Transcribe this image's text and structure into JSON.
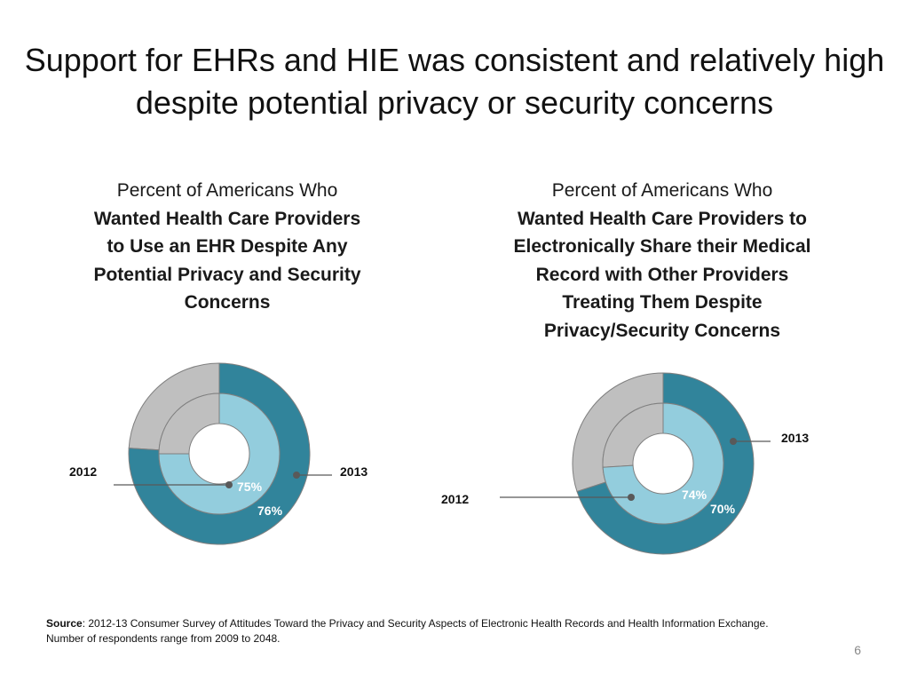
{
  "slide": {
    "title_lines": [
      "Support for EHRs and HIE was consistent and relatively high",
      "despite potential privacy or security concerns"
    ],
    "page_number": "6"
  },
  "panels": [
    {
      "title_lead": "Percent of Americans Who",
      "title_bold_lines": [
        "Wanted Health Care Providers",
        "to Use an EHR Despite Any",
        "Potential Privacy and Security",
        "Concerns"
      ]
    },
    {
      "title_lead": "Percent of Americans Who",
      "title_bold_lines": [
        "Wanted Health Care Providers to",
        "Electronically Share their Medical",
        "Record with Other Providers",
        "Treating Them Despite",
        "Privacy/Security Concerns"
      ]
    }
  ],
  "source": {
    "label": "Source",
    "line1": ": 2012-13 Consumer Survey of Attitudes Toward the Privacy and Security Aspects of Electronic Health Records and Health Information Exchange.",
    "line2": "Number of respondents range from 2009 to 2048."
  },
  "colors": {
    "outer_ring": "#31849b",
    "inner_ring": "#93cddd",
    "remainder": "#bfbfbf",
    "ring_stroke": "#7f7f7f",
    "leader_line": "#595959"
  },
  "chart_data": [
    {
      "type": "pie",
      "title": "",
      "series": [
        {
          "name": "2012",
          "ring": "inner",
          "value": 75,
          "label": "75%"
        },
        {
          "name": "2013",
          "ring": "outer",
          "value": 76,
          "label": "76%"
        }
      ],
      "legend": "leader-lines"
    },
    {
      "type": "pie",
      "title": "",
      "series": [
        {
          "name": "2012",
          "ring": "inner",
          "value": 74,
          "label": "74%"
        },
        {
          "name": "2013",
          "ring": "outer",
          "value": 70,
          "label": "70%"
        }
      ],
      "legend": "leader-lines"
    }
  ]
}
